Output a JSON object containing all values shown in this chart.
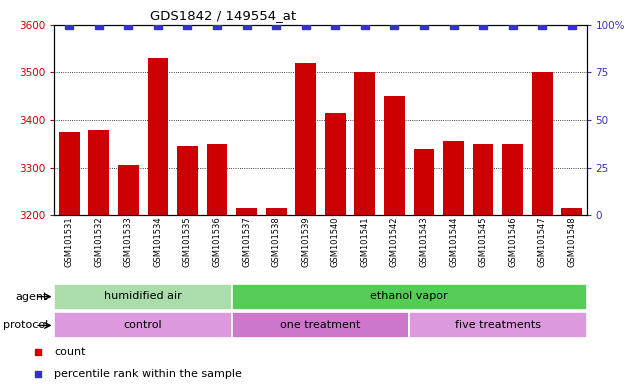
{
  "title": "GDS1842 / 149554_at",
  "samples": [
    "GSM101531",
    "GSM101532",
    "GSM101533",
    "GSM101534",
    "GSM101535",
    "GSM101536",
    "GSM101537",
    "GSM101538",
    "GSM101539",
    "GSM101540",
    "GSM101541",
    "GSM101542",
    "GSM101543",
    "GSM101544",
    "GSM101545",
    "GSM101546",
    "GSM101547",
    "GSM101548"
  ],
  "counts": [
    3375,
    3380,
    3305,
    3530,
    3345,
    3350,
    3215,
    3215,
    3520,
    3415,
    3500,
    3450,
    3340,
    3355,
    3350,
    3350,
    3500,
    3215
  ],
  "percentile_ranks": [
    100,
    100,
    100,
    100,
    100,
    100,
    100,
    100,
    100,
    100,
    100,
    100,
    100,
    100,
    100,
    100,
    100,
    100
  ],
  "bar_color": "#cc0000",
  "dot_color": "#3333cc",
  "ylim_left": [
    3200,
    3600
  ],
  "ylim_right": [
    0,
    100
  ],
  "yticks_left": [
    3200,
    3300,
    3400,
    3500,
    3600
  ],
  "yticks_right": [
    0,
    25,
    50,
    75,
    100
  ],
  "agent_groups": [
    {
      "label": "humidified air",
      "start": 0,
      "end": 6,
      "color": "#aaddaa"
    },
    {
      "label": "ethanol vapor",
      "start": 6,
      "end": 18,
      "color": "#55cc55"
    }
  ],
  "protocol_groups": [
    {
      "label": "control",
      "start": 0,
      "end": 6,
      "color": "#dd99dd"
    },
    {
      "label": "one treatment",
      "start": 6,
      "end": 12,
      "color": "#cc77cc"
    },
    {
      "label": "five treatments",
      "start": 12,
      "end": 18,
      "color": "#dd99dd"
    }
  ],
  "agent_label": "agent",
  "protocol_label": "protocol",
  "legend_count_color": "#cc0000",
  "legend_dot_color": "#3333cc",
  "legend_count_text": "count",
  "legend_dot_text": "percentile rank within the sample",
  "background_color": "#ffffff",
  "tick_label_color_left": "#cc0000",
  "tick_label_color_right": "#3333cc",
  "bar_width": 0.7,
  "dot_size": 28
}
